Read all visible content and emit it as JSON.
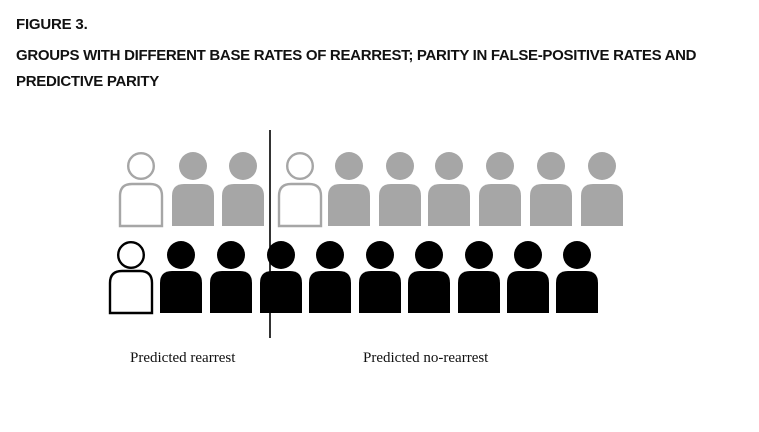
{
  "figure": {
    "label": "FIGURE 3.",
    "title": "GROUPS WITH DIFFERENT BASE RATES OF REARREST; PARITY IN FALSE-POSITIVE RATES AND PREDICTIVE PARITY"
  },
  "captions": {
    "predicted_rearrest": "Predicted rearrest",
    "predicted_no_rearrest": "Predicted no-rearrest"
  },
  "colors": {
    "gray_fill": "#a6a6a6",
    "black_fill": "#000000",
    "outline_gray": "#a6a6a6",
    "outline_black": "#000000",
    "divider": "#000000"
  },
  "groups": [
    {
      "row": "top",
      "people": [
        "outline",
        "filled",
        "filled",
        "outline",
        "filled",
        "filled",
        "filled",
        "filled",
        "filled",
        "filled"
      ],
      "color": "gray"
    },
    {
      "row": "bottom",
      "people": [
        "outline",
        "filled",
        "filled",
        "filled",
        "filled",
        "filled",
        "filled",
        "filled",
        "filled",
        "filled"
      ],
      "color": "black"
    }
  ]
}
